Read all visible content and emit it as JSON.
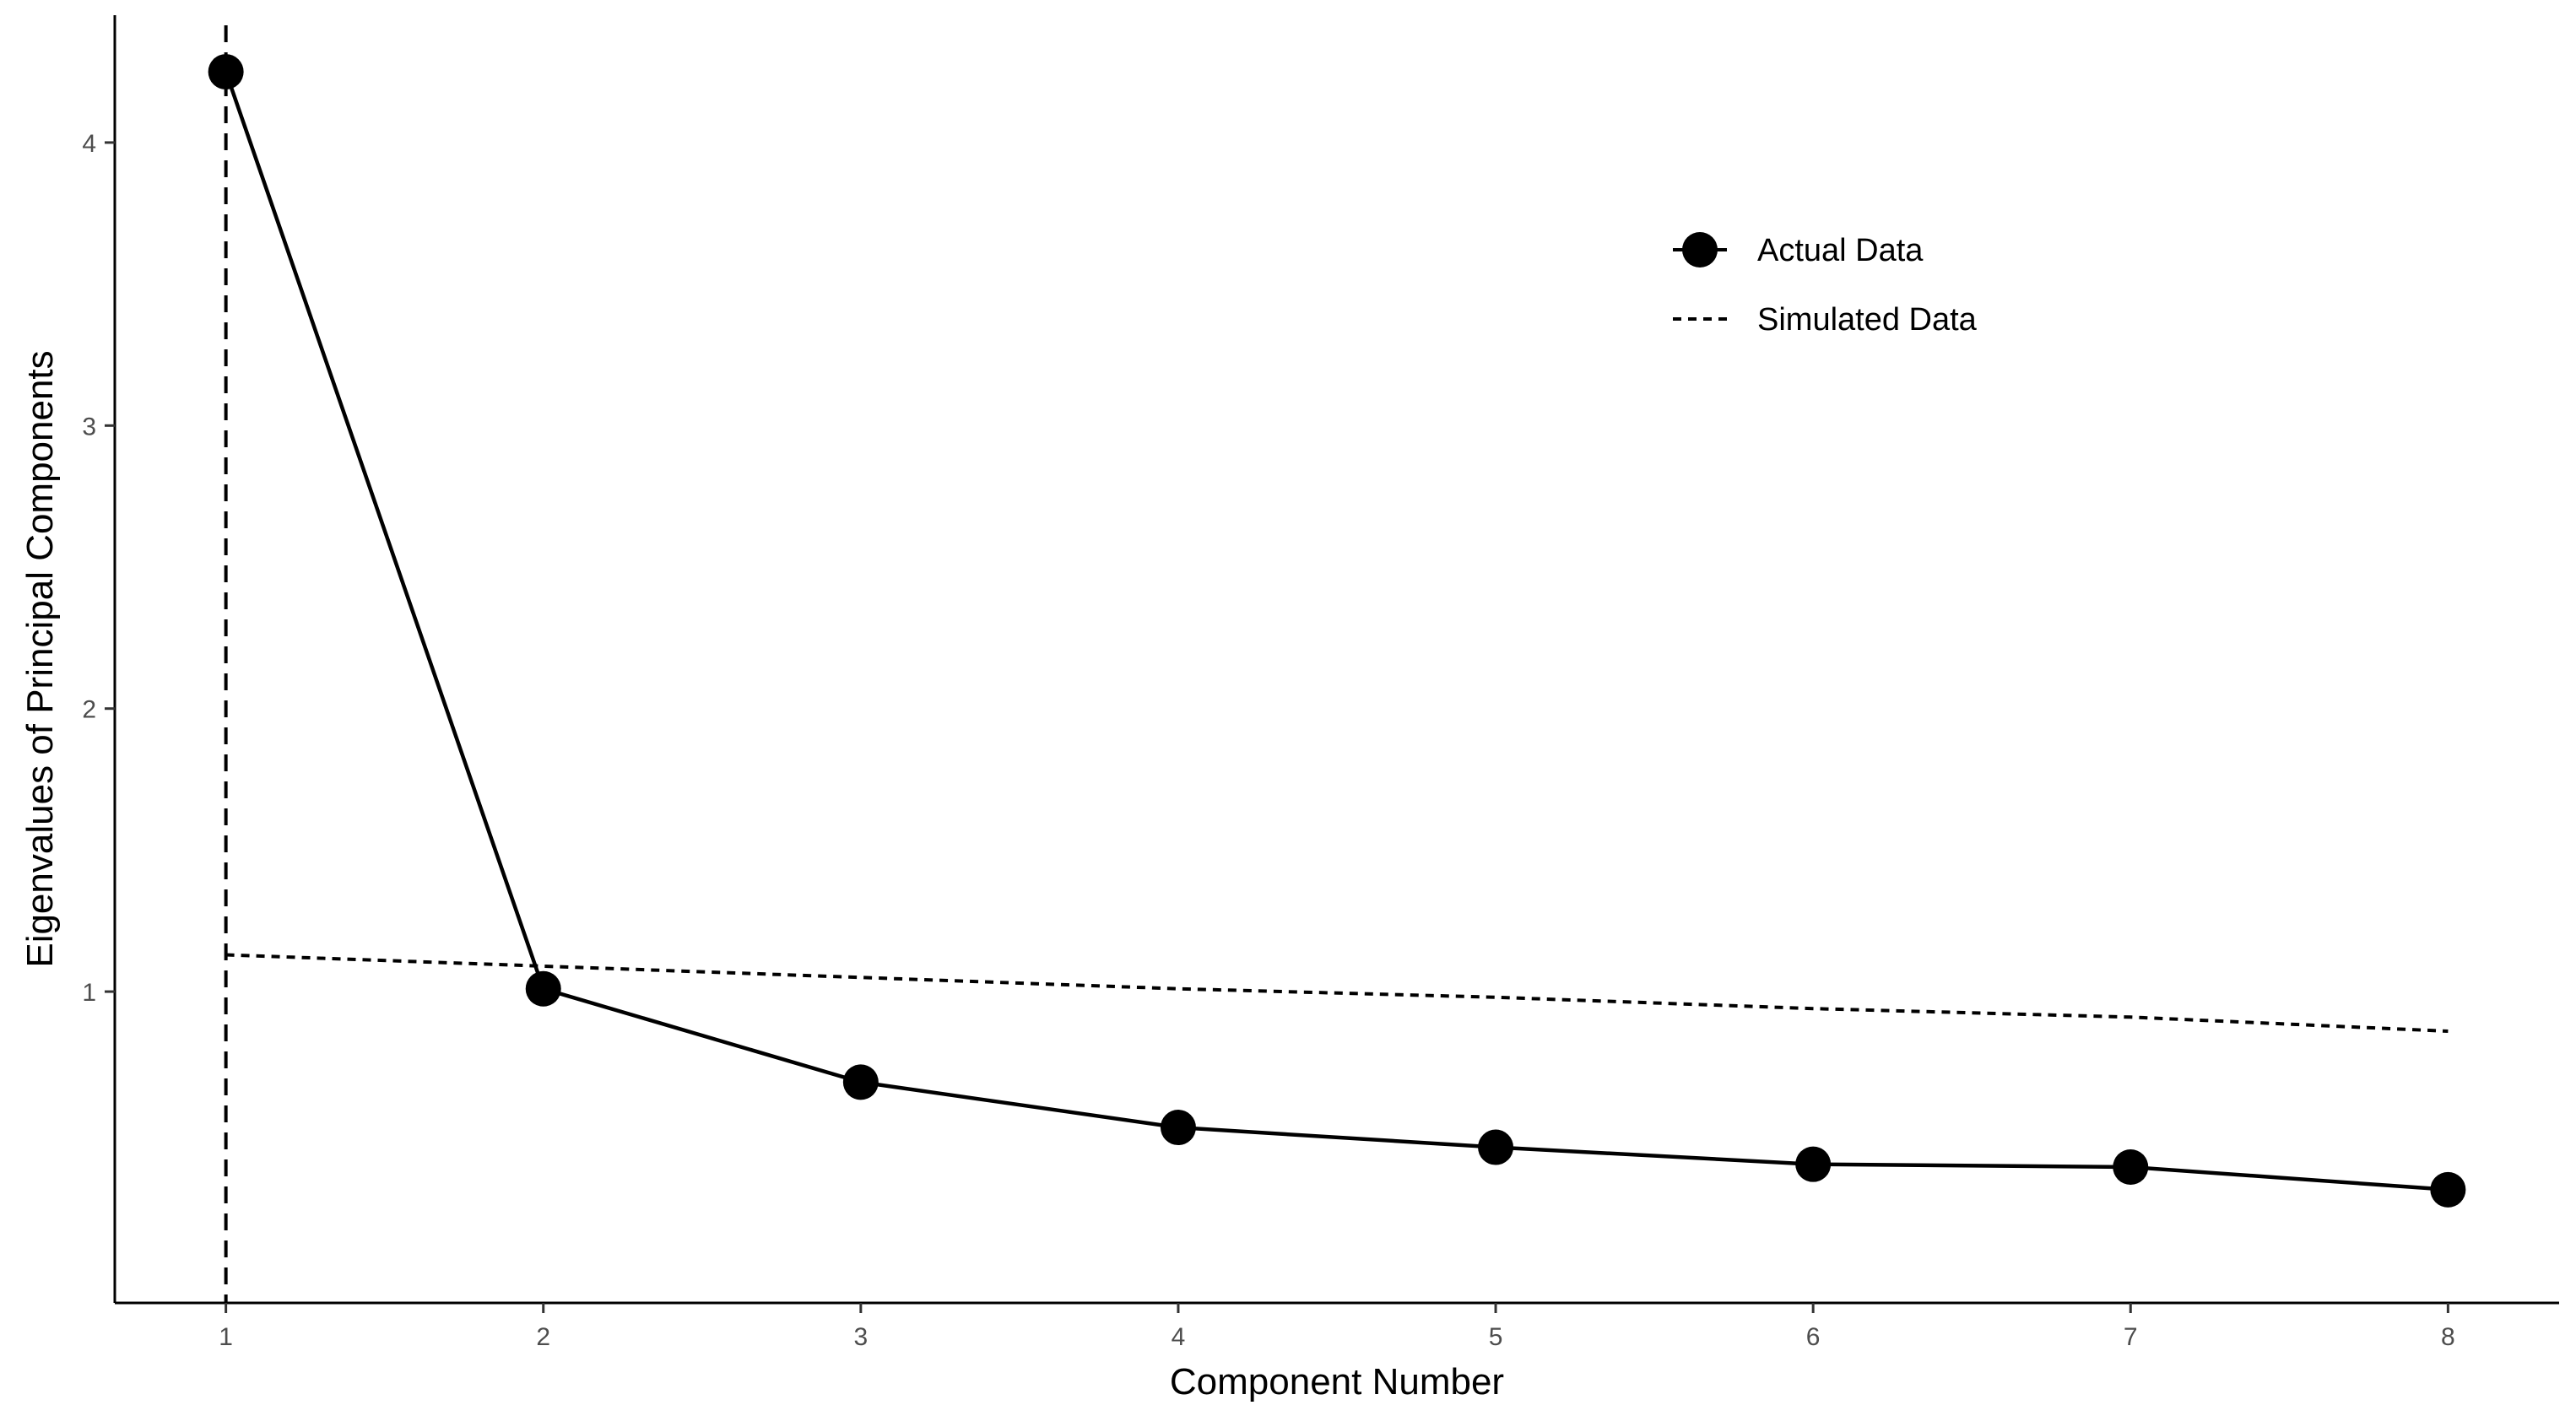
{
  "chart_data": {
    "type": "line",
    "title": "",
    "xlabel": "Component Number",
    "ylabel": "Eigenvalues of Principal Components",
    "xlim": [
      0.65,
      8.35
    ],
    "ylim": [
      -0.1,
      4.45
    ],
    "x_ticks": [
      1,
      2,
      3,
      4,
      5,
      6,
      7,
      8
    ],
    "y_ticks": [
      1,
      2,
      3,
      4
    ],
    "grid": false,
    "legend_position": "top-right",
    "series": [
      {
        "name": "Actual Data",
        "style": "solid-with-points",
        "x": [
          1,
          2,
          3,
          4,
          5,
          6,
          7,
          8
        ],
        "values": [
          4.25,
          1.01,
          0.68,
          0.52,
          0.45,
          0.39,
          0.38,
          0.3
        ]
      },
      {
        "name": "Simulated Data",
        "style": "dotted",
        "x": [
          1,
          2,
          3,
          4,
          5,
          6,
          7,
          8
        ],
        "values": [
          1.13,
          1.09,
          1.05,
          1.01,
          0.98,
          0.94,
          0.91,
          0.86
        ]
      }
    ],
    "reference_line": {
      "orientation": "vertical",
      "x": 1,
      "style": "dashed"
    },
    "colors": {
      "line": "#000000",
      "tick_label": "#4d4d4d"
    }
  }
}
